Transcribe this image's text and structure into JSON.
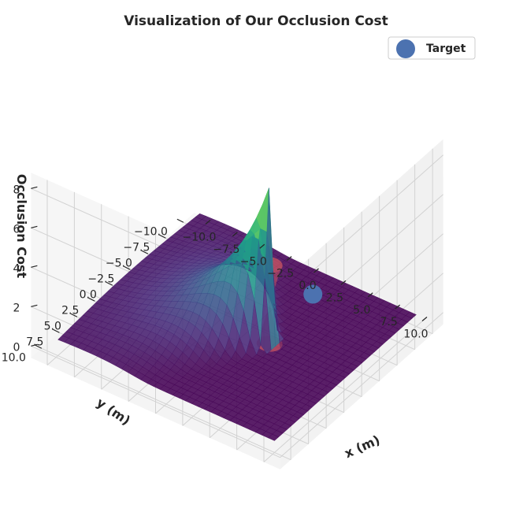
{
  "chart_data": {
    "type": "surface3d",
    "title": "Visualization of Our Occlusion Cost",
    "xlabel": "x (m)",
    "ylabel": "y (m)",
    "zlabel": "Occlusion Cost",
    "xlim": [
      -10,
      10
    ],
    "ylim": [
      -10,
      10
    ],
    "zlim": [
      0,
      8
    ],
    "x_ticks": [
      "−10.0",
      "−7.5",
      "−5.0",
      "−2.5",
      "0.0",
      "2.5",
      "5.0",
      "7.5",
      "10.0"
    ],
    "y_ticks": [
      "−10.0",
      "−7.5",
      "−5.0",
      "−2.5",
      "0.0",
      "2.5",
      "5.0",
      "7.5",
      "10.0"
    ],
    "z_ticks": [
      "0",
      "2",
      "4",
      "6",
      "8"
    ],
    "colormap": "viridis",
    "surface_peak": 8.0,
    "surface_floor": 0.0,
    "target": {
      "name": "Target",
      "x": 7.0,
      "y": 0.0,
      "z": 3.5,
      "color": "#4c72b0"
    },
    "obstacle": {
      "type": "cylinder",
      "x": 3.0,
      "y": 0.0,
      "radius": 1.0,
      "height": 4.0,
      "color": "#e06060"
    },
    "legend": {
      "placement": "top-right",
      "entries": [
        {
          "label": "Target",
          "color": "#4c72b0"
        }
      ]
    },
    "grid": true
  }
}
